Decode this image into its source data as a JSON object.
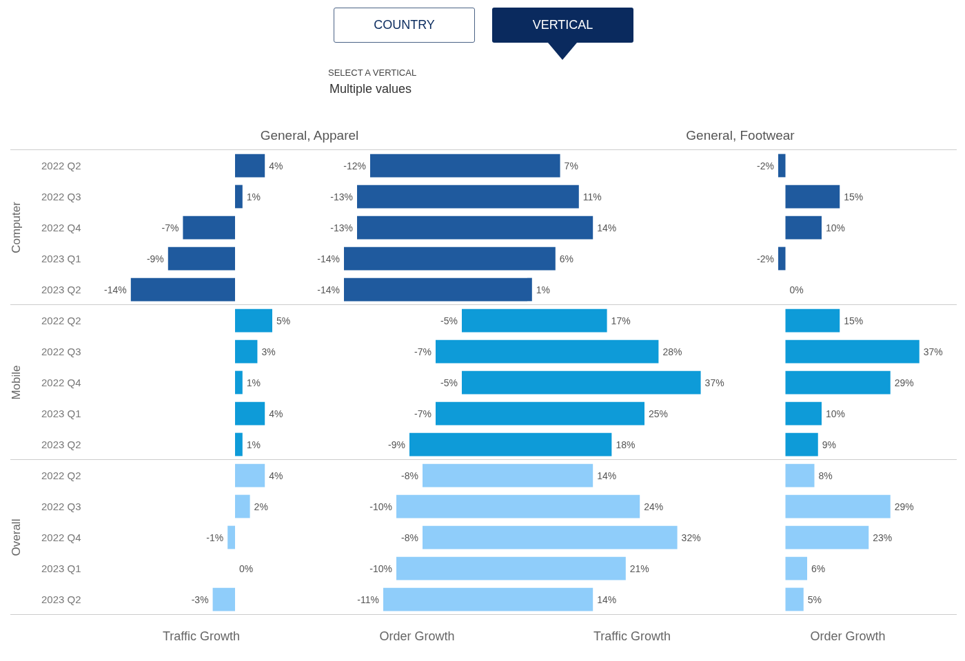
{
  "chart_data": [
    {
      "type": "other",
      "annotations": [
        "COUNTRY",
        "VERTICAL",
        "SELECT A VERTICAL",
        "Multiple values"
      ]
    },
    {
      "type": "bar",
      "orientation": "horizontal",
      "title": "General, Apparel",
      "xlabel": "Traffic Growth",
      "tick_labels": "y",
      "annotations": [
        "Computer",
        "Mobile",
        "Overall"
      ],
      "categories": [
        "2022 Q2",
        "2022 Q3",
        "2022 Q4",
        "2023 Q1",
        "2023 Q2",
        "2022 Q2",
        "2022 Q3",
        "2022 Q4",
        "2023 Q1",
        "2023 Q2",
        "2022 Q2",
        "2022 Q3",
        "2022 Q4",
        "2023 Q1",
        "2023 Q2"
      ],
      "values": [
        4,
        1,
        -7,
        -9,
        -14,
        5,
        3,
        1,
        4,
        1,
        4,
        2,
        -1,
        0,
        -3
      ],
      "value_labels": [
        "4%",
        "1%",
        "-7%",
        "-9%",
        "-14%",
        "5%",
        "3%",
        "1%",
        "4%",
        "1%",
        "4%",
        "2%",
        "-1%",
        "0%",
        "-3%"
      ],
      "colors": [
        "#1f5a9e",
        "#1f5a9e",
        "#1f5a9e",
        "#1f5a9e",
        "#1f5a9e",
        "#0e9bd8",
        "#0e9bd8",
        "#0e9bd8",
        "#0e9bd8",
        "#0e9bd8",
        "#8fcdfa",
        "#8fcdfa",
        "#8fcdfa",
        "#8fcdfa",
        "#8fcdfa"
      ]
    },
    {
      "type": "bar",
      "orientation": "horizontal",
      "xlabel": "Order Growth",
      "tick_labels": false,
      "values": [
        -12,
        -13,
        -13,
        -14,
        -14,
        -5,
        -7,
        -5,
        -7,
        -9,
        -8,
        -10,
        -8,
        -10,
        -11
      ],
      "value_labels": [
        "-12%",
        "-13%",
        "-13%",
        "-14%",
        "-14%",
        "-5%",
        "-7%",
        "-5%",
        "-7%",
        "-9%",
        "-8%",
        "-10%",
        "-8%",
        "-10%",
        "-11%"
      ],
      "colors": [
        "#1f5a9e",
        "#1f5a9e",
        "#1f5a9e",
        "#1f5a9e",
        "#1f5a9e",
        "#0e9bd8",
        "#0e9bd8",
        "#0e9bd8",
        "#0e9bd8",
        "#0e9bd8",
        "#8fcdfa",
        "#8fcdfa",
        "#8fcdfa",
        "#8fcdfa",
        "#8fcdfa"
      ]
    },
    {
      "type": "bar",
      "orientation": "horizontal",
      "title": "General, Footwear",
      "xlabel": "Traffic Growth",
      "tick_labels": false,
      "values": [
        7,
        11,
        14,
        6,
        1,
        17,
        28,
        37,
        25,
        18,
        14,
        24,
        32,
        21,
        14
      ],
      "value_labels": [
        "7%",
        "11%",
        "14%",
        "6%",
        "1%",
        "17%",
        "28%",
        "37%",
        "25%",
        "18%",
        "14%",
        "24%",
        "32%",
        "21%",
        "14%"
      ],
      "colors": [
        "#1f5a9e",
        "#1f5a9e",
        "#1f5a9e",
        "#1f5a9e",
        "#1f5a9e",
        "#0e9bd8",
        "#0e9bd8",
        "#0e9bd8",
        "#0e9bd8",
        "#0e9bd8",
        "#8fcdfa",
        "#8fcdfa",
        "#8fcdfa",
        "#8fcdfa",
        "#8fcdfa"
      ]
    },
    {
      "type": "bar",
      "orientation": "horizontal",
      "xlabel": "Order Growth",
      "tick_labels": false,
      "values": [
        -2,
        15,
        10,
        -2,
        0,
        15,
        37,
        29,
        10,
        9,
        8,
        29,
        23,
        6,
        5
      ],
      "value_labels": [
        "-2%",
        "15%",
        "10%",
        "-2%",
        "0%",
        "15%",
        "37%",
        "29%",
        "10%",
        "9%",
        "8%",
        "29%",
        "23%",
        "6%",
        "5%"
      ],
      "colors": [
        "#1f5a9e",
        "#1f5a9e",
        "#1f5a9e",
        "#1f5a9e",
        "#1f5a9e",
        "#0e9bd8",
        "#0e9bd8",
        "#0e9bd8",
        "#0e9bd8",
        "#0e9bd8",
        "#8fcdfa",
        "#8fcdfa",
        "#8fcdfa",
        "#8fcdfa",
        "#8fcdfa"
      ]
    }
  ]
}
